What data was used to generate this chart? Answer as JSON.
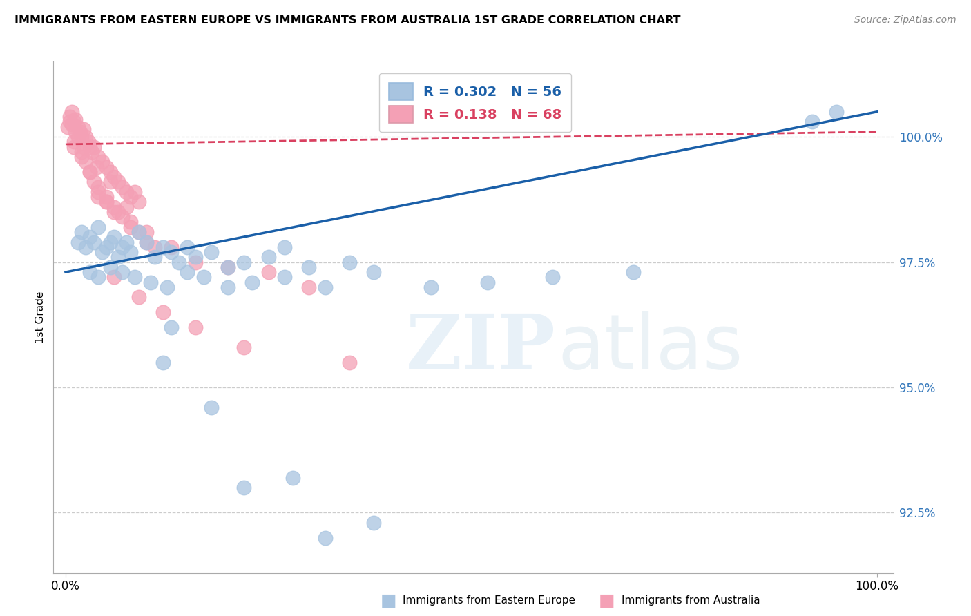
{
  "title": "IMMIGRANTS FROM EASTERN EUROPE VS IMMIGRANTS FROM AUSTRALIA 1ST GRADE CORRELATION CHART",
  "source": "Source: ZipAtlas.com",
  "ylabel": "1st Grade",
  "blue_R": 0.302,
  "blue_N": 56,
  "pink_R": 0.138,
  "pink_N": 68,
  "blue_color": "#a8c4e0",
  "pink_color": "#f4a0b5",
  "blue_line_color": "#1a5fa8",
  "pink_line_color": "#d94060",
  "xlim": [
    0.0,
    100.0
  ],
  "ylim": [
    91.5,
    101.3
  ],
  "yticks": [
    92.5,
    95.0,
    97.5,
    100.0
  ],
  "ytick_labels": [
    "92.5%",
    "95.0%",
    "97.5%",
    "100.0%"
  ],
  "blue_x": [
    1.5,
    2.0,
    2.5,
    3.0,
    3.5,
    4.0,
    4.5,
    5.0,
    5.5,
    6.0,
    6.5,
    7.0,
    7.5,
    8.0,
    9.0,
    10.0,
    11.0,
    12.0,
    13.0,
    14.0,
    15.0,
    16.0,
    18.0,
    20.0,
    22.0,
    25.0,
    27.0,
    30.0,
    35.0,
    3.0,
    4.0,
    5.5,
    7.0,
    8.5,
    10.5,
    12.5,
    15.0,
    17.0,
    20.0,
    23.0,
    27.0,
    32.0,
    38.0,
    45.0,
    52.0,
    60.0,
    70.0,
    95.0,
    12.0,
    18.0,
    28.0,
    38.0,
    92.0,
    13.0,
    22.0,
    32.0
  ],
  "blue_y": [
    97.9,
    98.1,
    97.8,
    98.0,
    97.9,
    98.2,
    97.7,
    97.8,
    97.9,
    98.0,
    97.6,
    97.8,
    97.9,
    97.7,
    98.1,
    97.9,
    97.6,
    97.8,
    97.7,
    97.5,
    97.8,
    97.6,
    97.7,
    97.4,
    97.5,
    97.6,
    97.8,
    97.4,
    97.5,
    97.3,
    97.2,
    97.4,
    97.3,
    97.2,
    97.1,
    97.0,
    97.3,
    97.2,
    97.0,
    97.1,
    97.2,
    97.0,
    97.3,
    97.0,
    97.1,
    97.2,
    97.3,
    100.5,
    95.5,
    94.6,
    93.2,
    92.3,
    100.3,
    96.2,
    93.0,
    92.0
  ],
  "pink_x": [
    0.3,
    0.5,
    0.8,
    1.0,
    1.2,
    1.5,
    1.8,
    2.0,
    2.2,
    2.5,
    2.8,
    3.0,
    3.2,
    3.5,
    4.0,
    4.5,
    5.0,
    5.5,
    6.0,
    6.5,
    7.0,
    7.5,
    8.0,
    8.5,
    9.0,
    1.0,
    1.5,
    2.0,
    2.5,
    3.0,
    3.5,
    4.0,
    5.0,
    6.5,
    0.5,
    0.8,
    1.2,
    2.2,
    3.8,
    5.5,
    7.5,
    1.0,
    2.0,
    3.0,
    4.0,
    5.0,
    6.0,
    8.0,
    10.0,
    13.0,
    4.0,
    6.0,
    8.0,
    10.0,
    16.0,
    25.0,
    5.0,
    7.0,
    9.0,
    11.0,
    20.0,
    30.0,
    6.0,
    9.0,
    12.0,
    16.0,
    22.0,
    35.0
  ],
  "pink_y": [
    100.2,
    100.4,
    100.5,
    100.3,
    100.35,
    100.2,
    100.1,
    100.0,
    100.15,
    100.0,
    99.9,
    99.8,
    99.7,
    99.8,
    99.6,
    99.5,
    99.4,
    99.3,
    99.2,
    99.1,
    99.0,
    98.9,
    98.8,
    98.9,
    98.7,
    99.9,
    100.0,
    99.7,
    99.5,
    99.3,
    99.1,
    98.9,
    98.7,
    98.5,
    100.3,
    100.25,
    100.1,
    99.8,
    99.4,
    99.1,
    98.6,
    99.8,
    99.6,
    99.3,
    99.0,
    98.8,
    98.6,
    98.3,
    98.1,
    97.8,
    98.8,
    98.5,
    98.2,
    97.9,
    97.5,
    97.3,
    98.7,
    98.4,
    98.1,
    97.8,
    97.4,
    97.0,
    97.2,
    96.8,
    96.5,
    96.2,
    95.8,
    95.5
  ]
}
